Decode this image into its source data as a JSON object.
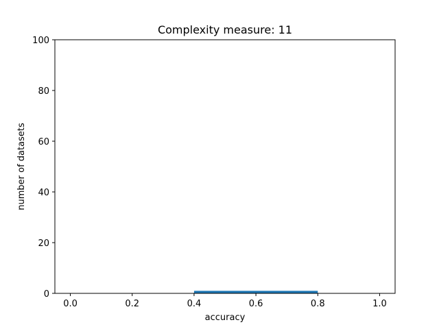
{
  "chart_data": {
    "type": "bar",
    "title": "Complexity measure: 11",
    "xlabel": "accuracy",
    "ylabel": "number of datasets",
    "xlim": [
      -0.05,
      1.05
    ],
    "ylim": [
      0,
      100
    ],
    "xticks": [
      0.0,
      0.2,
      0.4,
      0.6,
      0.8,
      1.0
    ],
    "xtick_labels": [
      "0.0",
      "0.2",
      "0.4",
      "0.6",
      "0.8",
      "1.0"
    ],
    "yticks": [
      0,
      20,
      40,
      60,
      80,
      100
    ],
    "ytick_labels": [
      "0",
      "20",
      "40",
      "60",
      "80",
      "100"
    ],
    "bars": [
      {
        "x_start": 0.4,
        "x_end": 0.8,
        "value": 1
      }
    ],
    "bar_color": "#1f77b4",
    "grid": false,
    "legend": "none"
  }
}
